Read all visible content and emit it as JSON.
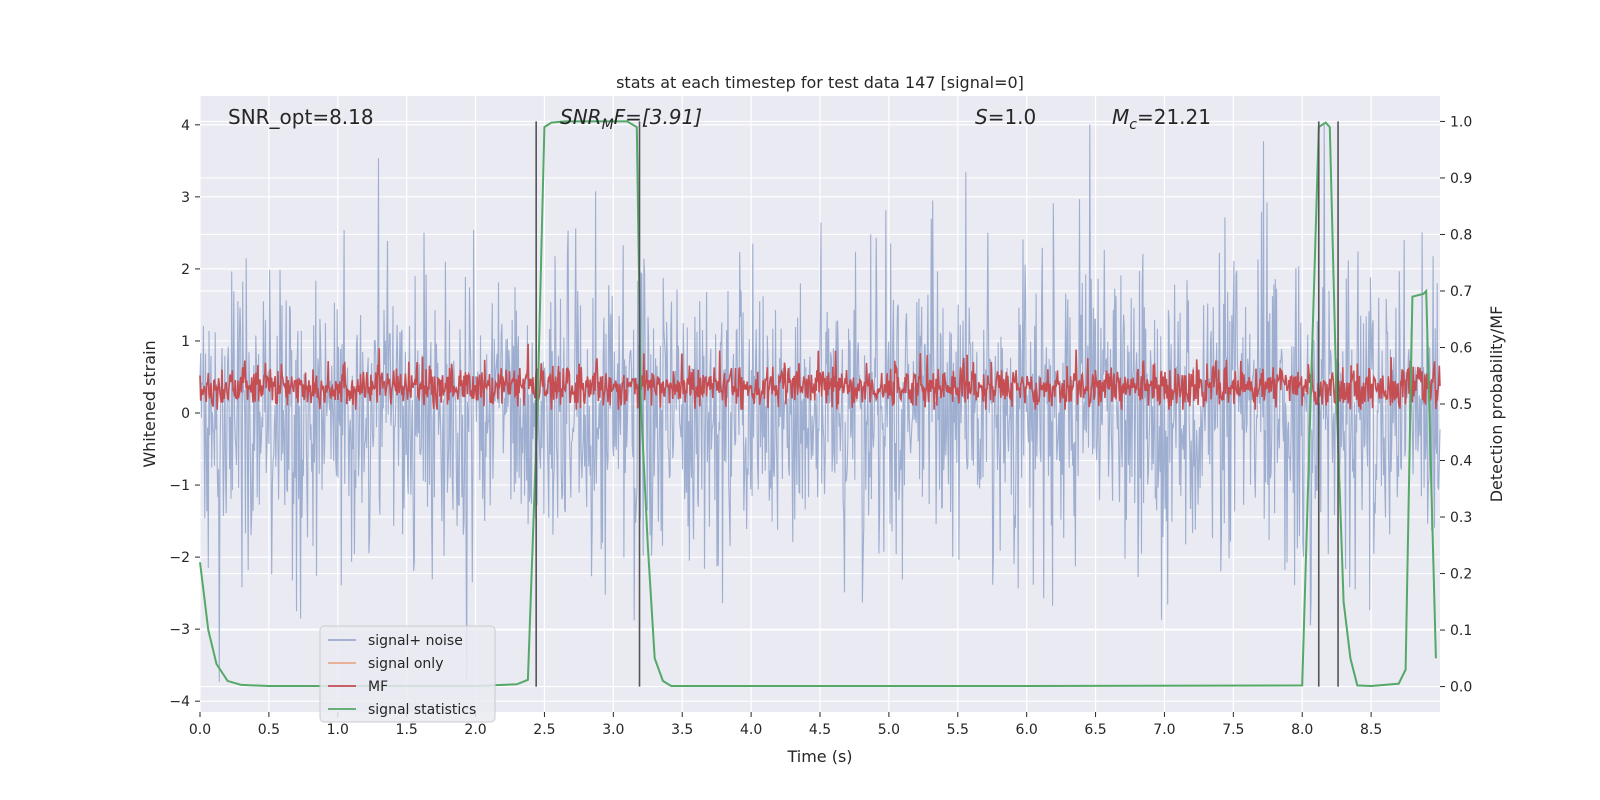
{
  "chart_data": {
    "type": "line",
    "title": "stats at each timestep for test data 147 [signal=0]",
    "xlabel": "Time (s)",
    "ylabel": "Whitened strain",
    "ylabel_right": "Detection probability/MF",
    "xlim": [
      0,
      9.0
    ],
    "ylim": [
      -4.15,
      4.4
    ],
    "ylim_right": [
      -0.045,
      1.045
    ],
    "x_ticks": [
      0,
      0.5,
      1,
      1.5,
      2,
      2.5,
      3,
      3.5,
      4,
      4.5,
      5,
      5.5,
      6,
      6.5,
      7,
      7.5,
      8,
      8.5
    ],
    "x_tick_labels": [
      "0.0",
      "0.5",
      "1.0",
      "1.5",
      "2.0",
      "2.5",
      "3.0",
      "3.5",
      "4.0",
      "4.5",
      "5.0",
      "5.5",
      "6.0",
      "6.5",
      "7.0",
      "7.5",
      "8.0",
      "8.5"
    ],
    "y_ticks": [
      4,
      3,
      2,
      1,
      0,
      -1,
      -2,
      -3,
      -4
    ],
    "y_tick_labels": [
      "4",
      "3",
      "2",
      "1",
      "0",
      "−1",
      "−2",
      "−3",
      "−4"
    ],
    "y_right_ticks": [
      1.0,
      0.9,
      0.8,
      0.7,
      0.6,
      0.5,
      0.4,
      0.3,
      0.2,
      0.1,
      0.0
    ],
    "y_right_tick_labels": [
      "1.0",
      "0.9",
      "0.8",
      "0.7",
      "0.6",
      "0.5",
      "0.4",
      "0.3",
      "0.2",
      "0.1",
      "0.0"
    ],
    "grid": true,
    "legend_location": "lower-left",
    "legend": [
      {
        "name": "signal+ noise",
        "color": "#9aabce"
      },
      {
        "name": "signal only",
        "color": "#e8a98b"
      },
      {
        "name": "MF",
        "color": "#c44e52"
      },
      {
        "name": "signal statistics",
        "color": "#55a868"
      }
    ],
    "annotations": {
      "snr_opt": "SNR_opt=8.18",
      "snr_mf_base": "SNR",
      "snr_mf_sub": "M",
      "snr_mf_rest": "F=[3.91]",
      "s_var": "S",
      "s_rest": "=1.0",
      "mc_base": "M",
      "mc_sub": "c",
      "mc_rest": "=21.21"
    },
    "series": [
      {
        "name": "signal+ noise",
        "axis": "left",
        "color": "#9aabce",
        "description": "noise-dominated whitened strain, approx uniform band",
        "band_lower_typical": -1.6,
        "band_upper_typical": 1.7,
        "max": 4.0,
        "min": -3.8,
        "n_samples": 1800
      },
      {
        "name": "MF",
        "axis": "right",
        "color": "#c44e52",
        "description": "matched filter output fluctuating around 0.53",
        "mean": 0.53,
        "min": 0.49,
        "max": 0.62,
        "n_samples": 1800
      },
      {
        "name": "signal statistics",
        "axis": "right",
        "color": "#55a868",
        "x": [
          0.0,
          0.06,
          0.12,
          0.2,
          0.3,
          0.5,
          1.0,
          2.0,
          2.3,
          2.38,
          2.45,
          2.5,
          2.55,
          2.65,
          3.1,
          3.17,
          3.2,
          3.25,
          3.3,
          3.36,
          3.42,
          4.0,
          6.0,
          8.0,
          8.06,
          8.12,
          8.17,
          8.2,
          8.25,
          8.3,
          8.35,
          8.4,
          8.5,
          8.7,
          8.75,
          8.8,
          8.88,
          8.9,
          8.97
        ],
        "values": [
          0.22,
          0.1,
          0.04,
          0.01,
          0.003,
          0.001,
          0.001,
          0.001,
          0.004,
          0.012,
          0.5,
          0.99,
          0.998,
          1.0,
          1.0,
          0.99,
          0.5,
          0.25,
          0.05,
          0.01,
          0.001,
          0.001,
          0.001,
          0.002,
          0.5,
          0.99,
          0.998,
          0.99,
          0.5,
          0.15,
          0.05,
          0.002,
          0.001,
          0.005,
          0.03,
          0.69,
          0.695,
          0.7,
          0.05
        ]
      },
      {
        "name": "detection markers",
        "axis": "right",
        "color": "#555555",
        "x": [
          2.44,
          3.19,
          8.12,
          8.26
        ],
        "y_range": [
          0.0,
          1.0
        ]
      }
    ]
  }
}
